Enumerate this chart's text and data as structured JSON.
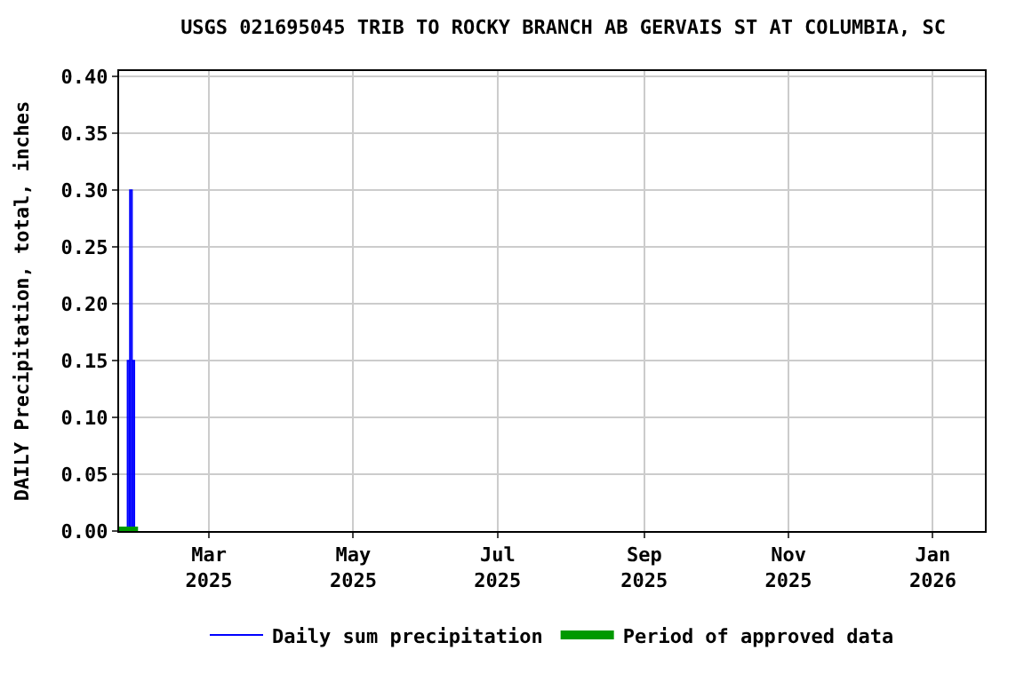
{
  "chart_data": {
    "type": "bar",
    "title": "USGS 021695045 TRIB TO ROCKY BRANCH AB GERVAIS ST AT COLUMBIA, SC",
    "ylabel": "DAILY Precipitation, total, inches",
    "x": [
      "2025-01-26",
      "2025-01-27",
      "2025-01-28"
    ],
    "series": [
      {
        "name": "Daily sum precipitation",
        "color": "#0000ff",
        "values": [
          0.15,
          0.3,
          0.15
        ]
      },
      {
        "name": "Period of approved data",
        "color": "#009900",
        "type": "line",
        "x": [
          "2025-01-22",
          "2025-01-30"
        ],
        "values": [
          0,
          0
        ]
      }
    ],
    "xlim": [
      "2025-01-22",
      "2026-01-23"
    ],
    "xticks": [
      {
        "value": "2025-03-01",
        "label": "Mar\n2025"
      },
      {
        "value": "2025-05-01",
        "label": "May\n2025"
      },
      {
        "value": "2025-07-01",
        "label": "Jul\n2025"
      },
      {
        "value": "2025-09-01",
        "label": "Sep\n2025"
      },
      {
        "value": "2025-11-01",
        "label": "Nov\n2025"
      },
      {
        "value": "2026-01-01",
        "label": "Jan\n2026"
      }
    ],
    "ylim": [
      0,
      0.405
    ],
    "yticks": [
      {
        "value": 0,
        "label": "0.00"
      },
      {
        "value": 0.05,
        "label": "0.05"
      },
      {
        "value": 0.1,
        "label": "0.10"
      },
      {
        "value": 0.15,
        "label": "0.15"
      },
      {
        "value": 0.2,
        "label": "0.20"
      },
      {
        "value": 0.25,
        "label": "0.25"
      },
      {
        "value": 0.3,
        "label": "0.30"
      },
      {
        "value": 0.35,
        "label": "0.35"
      },
      {
        "value": 0.4,
        "label": "0.40"
      }
    ],
    "grid": true,
    "legend": "bottom",
    "marker": "none",
    "line_style": "solid"
  }
}
